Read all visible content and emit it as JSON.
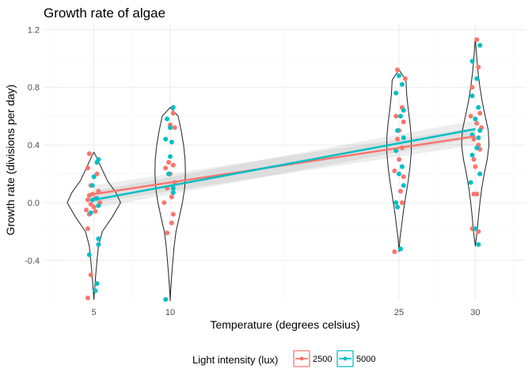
{
  "chart_data": {
    "type": "scatter",
    "title": "Growth rate of algae",
    "xlabel": "Temperature (degrees celsius)",
    "ylabel": "Growth rate (divisions per day)",
    "xlim": [
      1.7,
      33.3
    ],
    "ylim": [
      -0.68,
      1.24
    ],
    "x_ticks": [
      5,
      10,
      25,
      30
    ],
    "y_ticks": [
      -0.4,
      0.0,
      0.4,
      0.8,
      1.2
    ],
    "y_tick_labels": [
      "-0.4",
      "0.0",
      "0.4",
      "0.8",
      "1.2"
    ],
    "grid": true,
    "legend": {
      "title": "Light intensity (lux)",
      "position": "bottom"
    },
    "violins": [
      {
        "x": 5,
        "profile": [
          [
            -0.67,
            0.0
          ],
          [
            -0.6,
            0.05
          ],
          [
            -0.5,
            0.12
          ],
          [
            -0.4,
            0.2
          ],
          [
            -0.3,
            0.3
          ],
          [
            -0.2,
            0.55
          ],
          [
            -0.1,
            1.2
          ],
          [
            0.0,
            1.75
          ],
          [
            0.07,
            1.45
          ],
          [
            0.15,
            0.9
          ],
          [
            0.25,
            0.45
          ],
          [
            0.32,
            0.15
          ],
          [
            0.35,
            0.0
          ]
        ]
      },
      {
        "x": 10,
        "profile": [
          [
            -0.68,
            0.0
          ],
          [
            -0.6,
            0.04
          ],
          [
            -0.5,
            0.1
          ],
          [
            -0.4,
            0.18
          ],
          [
            -0.3,
            0.26
          ],
          [
            -0.2,
            0.38
          ],
          [
            -0.1,
            0.6
          ],
          [
            0.0,
            0.8
          ],
          [
            0.1,
            0.95
          ],
          [
            0.2,
            1.0
          ],
          [
            0.3,
            0.98
          ],
          [
            0.4,
            0.88
          ],
          [
            0.5,
            0.72
          ],
          [
            0.6,
            0.52
          ],
          [
            0.66,
            0.0
          ]
        ]
      },
      {
        "x": 25,
        "profile": [
          [
            -0.34,
            0.0
          ],
          [
            -0.25,
            0.06
          ],
          [
            -0.15,
            0.18
          ],
          [
            -0.05,
            0.3
          ],
          [
            0.05,
            0.45
          ],
          [
            0.15,
            0.6
          ],
          [
            0.25,
            0.72
          ],
          [
            0.35,
            0.8
          ],
          [
            0.45,
            0.8
          ],
          [
            0.55,
            0.72
          ],
          [
            0.65,
            0.6
          ],
          [
            0.75,
            0.5
          ],
          [
            0.85,
            0.45
          ],
          [
            0.92,
            0.0
          ]
        ]
      },
      {
        "x": 30,
        "profile": [
          [
            -0.3,
            0.0
          ],
          [
            -0.2,
            0.12
          ],
          [
            -0.1,
            0.2
          ],
          [
            0.0,
            0.3
          ],
          [
            0.1,
            0.42
          ],
          [
            0.2,
            0.58
          ],
          [
            0.3,
            0.78
          ],
          [
            0.4,
            0.9
          ],
          [
            0.5,
            0.85
          ],
          [
            0.6,
            0.65
          ],
          [
            0.7,
            0.45
          ],
          [
            0.8,
            0.3
          ],
          [
            0.9,
            0.18
          ],
          [
            1.0,
            0.1
          ],
          [
            1.14,
            0.0
          ]
        ]
      }
    ],
    "series": [
      {
        "name": "2500",
        "color": "#F8766D",
        "trend": {
          "x": [
            5,
            30
          ],
          "y": [
            0.06,
            0.46
          ],
          "ci_halfwidth": [
            0.06,
            0.06
          ]
        },
        "points": [
          [
            4.7,
            0.34
          ],
          [
            4.6,
            0.24
          ],
          [
            5.2,
            0.2
          ],
          [
            4.8,
            0.12
          ],
          [
            5.3,
            0.08
          ],
          [
            4.9,
            0.06
          ],
          [
            4.7,
            0.05
          ],
          [
            5.1,
            0.03
          ],
          [
            4.6,
            0.02
          ],
          [
            5.4,
            0.0
          ],
          [
            4.8,
            -0.01
          ],
          [
            5.0,
            -0.03
          ],
          [
            4.5,
            -0.05
          ],
          [
            5.1,
            -0.06
          ],
          [
            4.7,
            -0.08
          ],
          [
            4.6,
            -0.18
          ],
          [
            4.8,
            -0.5
          ],
          [
            4.6,
            -0.66
          ],
          [
            9.9,
            0.28
          ],
          [
            10.2,
            0.26
          ],
          [
            9.7,
            0.24
          ],
          [
            10.0,
            0.2
          ],
          [
            10.3,
            0.14
          ],
          [
            9.8,
            0.1
          ],
          [
            10.1,
            0.04
          ],
          [
            9.6,
            0.0
          ],
          [
            10.2,
            -0.08
          ],
          [
            10.1,
            -0.14
          ],
          [
            9.8,
            -0.21
          ],
          [
            10.3,
            0.52
          ],
          [
            10.0,
            0.54
          ],
          [
            10.2,
            0.62
          ],
          [
            24.9,
            0.92
          ],
          [
            25.4,
            0.86
          ],
          [
            25.2,
            0.66
          ],
          [
            24.8,
            0.6
          ],
          [
            25.3,
            0.56
          ],
          [
            25.0,
            0.5
          ],
          [
            24.9,
            0.44
          ],
          [
            25.2,
            0.38
          ],
          [
            25.0,
            0.3
          ],
          [
            24.7,
            0.22
          ],
          [
            25.3,
            0.18
          ],
          [
            25.1,
            0.08
          ],
          [
            25.2,
            0.0
          ],
          [
            24.7,
            -0.34
          ],
          [
            30.1,
            1.13
          ],
          [
            30.2,
            0.94
          ],
          [
            29.8,
            0.8
          ],
          [
            30.3,
            0.62
          ],
          [
            29.7,
            0.6
          ],
          [
            30.1,
            0.55
          ],
          [
            30.4,
            0.52
          ],
          [
            29.9,
            0.44
          ],
          [
            30.2,
            0.4
          ],
          [
            30.3,
            0.37
          ],
          [
            29.9,
            0.3
          ],
          [
            30.0,
            0.25
          ],
          [
            30.1,
            0.06
          ],
          [
            29.9,
            0.06
          ],
          [
            30.2,
            -0.2
          ],
          [
            29.8,
            -0.18
          ]
        ]
      },
      {
        "name": "5000",
        "color": "#00BFC4",
        "trend": {
          "x": [
            5,
            30
          ],
          "y": [
            0.02,
            0.51
          ],
          "ci_halfwidth": [
            0.06,
            0.06
          ]
        },
        "points": [
          [
            5.3,
            0.3
          ],
          [
            5.2,
            0.28
          ],
          [
            5.0,
            0.18
          ],
          [
            4.9,
            0.12
          ],
          [
            5.2,
            0.03
          ],
          [
            4.9,
            0.02
          ],
          [
            5.3,
            -0.02
          ],
          [
            4.8,
            -0.07
          ],
          [
            5.3,
            -0.25
          ],
          [
            5.3,
            -0.29
          ],
          [
            4.7,
            -0.36
          ],
          [
            5.2,
            -0.56
          ],
          [
            5.1,
            -0.61
          ],
          [
            10.2,
            0.66
          ],
          [
            9.8,
            0.58
          ],
          [
            10.0,
            0.52
          ],
          [
            9.7,
            0.44
          ],
          [
            10.1,
            0.42
          ],
          [
            10.0,
            0.32
          ],
          [
            9.9,
            0.2
          ],
          [
            10.2,
            0.1
          ],
          [
            10.2,
            0.07
          ],
          [
            9.7,
            -0.67
          ],
          [
            25.0,
            0.88
          ],
          [
            25.2,
            0.82
          ],
          [
            24.8,
            0.76
          ],
          [
            25.3,
            0.64
          ],
          [
            25.1,
            0.6
          ],
          [
            24.9,
            0.5
          ],
          [
            25.3,
            0.45
          ],
          [
            24.8,
            0.36
          ],
          [
            25.2,
            0.25
          ],
          [
            25.0,
            0.2
          ],
          [
            25.3,
            0.12
          ],
          [
            24.8,
            0.0
          ],
          [
            24.9,
            -0.03
          ],
          [
            25.1,
            -0.32
          ],
          [
            29.8,
            0.98
          ],
          [
            30.3,
            1.09
          ],
          [
            30.1,
            0.86
          ],
          [
            29.8,
            0.74
          ],
          [
            30.2,
            0.66
          ],
          [
            30.0,
            0.58
          ],
          [
            30.3,
            0.5
          ],
          [
            29.8,
            0.47
          ],
          [
            30.2,
            0.45
          ],
          [
            30.1,
            0.38
          ],
          [
            29.8,
            0.33
          ],
          [
            30.3,
            0.2
          ],
          [
            29.7,
            0.14
          ],
          [
            30.0,
            -0.18
          ],
          [
            30.2,
            -0.29
          ]
        ]
      }
    ]
  }
}
